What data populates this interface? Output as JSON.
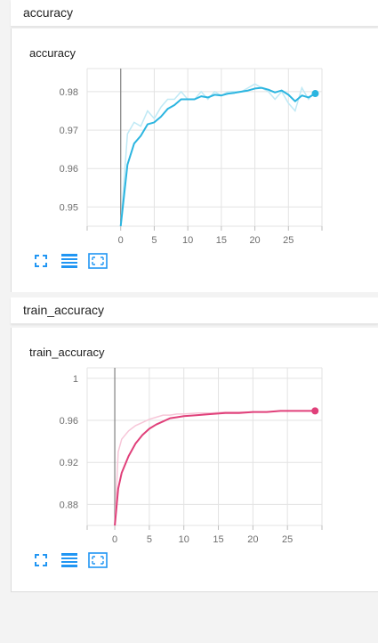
{
  "sections": [
    {
      "header": "accuracy",
      "card_title": "accuracy"
    },
    {
      "header": "train_accuracy",
      "card_title": "train_accuracy"
    }
  ],
  "colors": {
    "accuracy_line": "#2bb5e0",
    "accuracy_raw": "#bfe9f5",
    "train_line": "#e0407a",
    "train_raw": "#f7c6d8",
    "y_axis": "#8a8a8a",
    "grid": "#e3e3e3",
    "toolbar_icon": "#2196f3"
  },
  "toolbar_icons": [
    "fullscreen-icon",
    "log-scale-icon",
    "fit-domain-icon"
  ],
  "chart_data": [
    {
      "type": "line",
      "title": "accuracy",
      "xlabel": "",
      "ylabel": "",
      "xlim": [
        -5,
        30
      ],
      "ylim": [
        0.945,
        0.986
      ],
      "x_ticks": [
        0,
        5,
        10,
        15,
        20,
        25
      ],
      "y_ticks": [
        0.95,
        0.96,
        0.97,
        0.98
      ],
      "y_tick_labels": [
        "0.95",
        "0.96",
        "0.97",
        "0.98"
      ],
      "grid": true,
      "series": [
        {
          "role": "smoothed",
          "x": [
            0,
            1,
            2,
            3,
            4,
            5,
            6,
            7,
            8,
            9,
            10,
            11,
            12,
            13,
            14,
            15,
            16,
            17,
            18,
            19,
            20,
            21,
            22,
            23,
            24,
            25,
            26,
            27,
            28,
            29
          ],
          "y": [
            0.945,
            0.961,
            0.9665,
            0.9685,
            0.9715,
            0.972,
            0.9735,
            0.9755,
            0.9765,
            0.978,
            0.978,
            0.978,
            0.9788,
            0.9785,
            0.9792,
            0.979,
            0.9795,
            0.9797,
            0.98,
            0.9803,
            0.9808,
            0.981,
            0.9805,
            0.9798,
            0.9803,
            0.9792,
            0.9775,
            0.979,
            0.9785,
            0.9795
          ]
        },
        {
          "role": "raw",
          "x": [
            0,
            1,
            2,
            3,
            4,
            5,
            6,
            7,
            8,
            9,
            10,
            11,
            12,
            13,
            14,
            15,
            16,
            17,
            18,
            19,
            20,
            21,
            22,
            23,
            24,
            25,
            26,
            27,
            28,
            29
          ],
          "y": [
            0.945,
            0.969,
            0.972,
            0.971,
            0.975,
            0.973,
            0.976,
            0.978,
            0.978,
            0.98,
            0.978,
            0.978,
            0.98,
            0.978,
            0.98,
            0.979,
            0.98,
            0.98,
            0.98,
            0.981,
            0.982,
            0.981,
            0.98,
            0.978,
            0.98,
            0.977,
            0.975,
            0.981,
            0.978,
            0.98
          ]
        }
      ]
    },
    {
      "type": "line",
      "title": "train_accuracy",
      "xlabel": "",
      "ylabel": "",
      "xlim": [
        -4,
        30
      ],
      "ylim": [
        0.86,
        1.01
      ],
      "x_ticks": [
        0,
        5,
        10,
        15,
        20,
        25
      ],
      "y_ticks": [
        0.88,
        0.92,
        0.96,
        1.0
      ],
      "y_tick_labels": [
        "0.88",
        "0.92",
        "0.96",
        "1"
      ],
      "grid": true,
      "series": [
        {
          "role": "smoothed",
          "x": [
            0,
            0.5,
            1,
            2,
            3,
            4,
            5,
            6,
            7,
            8,
            9,
            10,
            12,
            14,
            16,
            18,
            20,
            22,
            24,
            26,
            28,
            29
          ],
          "y": [
            0.86,
            0.895,
            0.91,
            0.926,
            0.938,
            0.946,
            0.952,
            0.956,
            0.959,
            0.962,
            0.963,
            0.964,
            0.965,
            0.966,
            0.967,
            0.967,
            0.968,
            0.968,
            0.969,
            0.969,
            0.969,
            0.969
          ]
        },
        {
          "role": "raw",
          "x": [
            0,
            0.5,
            1,
            2,
            3,
            4,
            5,
            6,
            7,
            8,
            9,
            10,
            12,
            14,
            16,
            18,
            20,
            22,
            24,
            26,
            28,
            29
          ],
          "y": [
            0.86,
            0.93,
            0.942,
            0.95,
            0.955,
            0.958,
            0.961,
            0.963,
            0.965,
            0.965,
            0.966,
            0.966,
            0.967,
            0.967,
            0.968,
            0.968,
            0.968,
            0.968,
            0.969,
            0.969,
            0.969,
            0.969
          ]
        }
      ]
    }
  ]
}
